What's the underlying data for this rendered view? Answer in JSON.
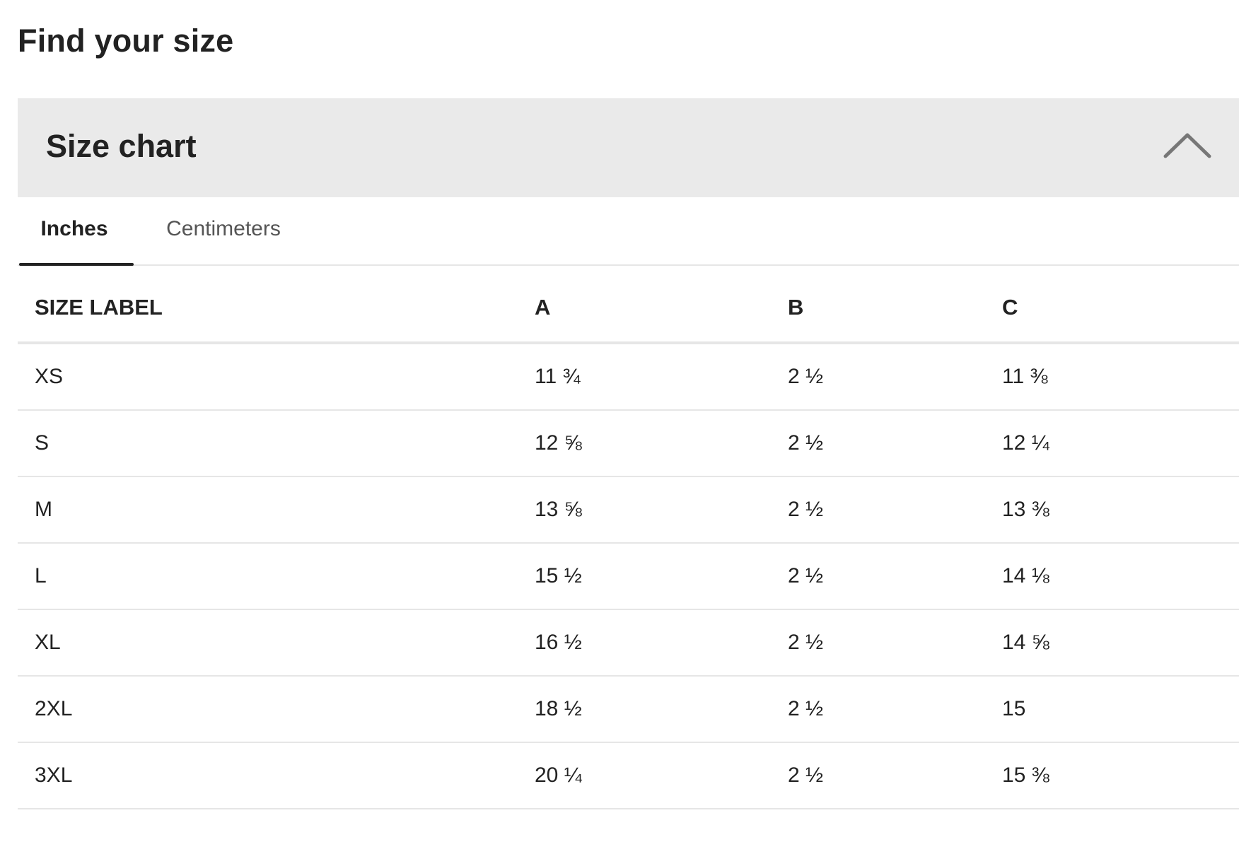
{
  "page": {
    "title": "Find your size"
  },
  "accordion": {
    "title": "Size chart",
    "icon": "chevron-up-icon"
  },
  "tabs": [
    {
      "label": "Inches",
      "active": true
    },
    {
      "label": "Centimeters",
      "active": false
    }
  ],
  "table": {
    "headers": [
      "SIZE LABEL",
      "A",
      "B",
      "C"
    ],
    "rows": [
      [
        "XS",
        "11 ¾",
        "2 ½",
        "11 ⅜"
      ],
      [
        "S",
        "12 ⅝",
        "2 ½",
        "12 ¼"
      ],
      [
        "M",
        "13 ⅝",
        "2 ½",
        "13 ⅜"
      ],
      [
        "L",
        "15 ½",
        "2 ½",
        "14 ⅛"
      ],
      [
        "XL",
        "16 ½",
        "2 ½",
        "14 ⅝"
      ],
      [
        "2XL",
        "18 ½",
        "2 ½",
        "15"
      ],
      [
        "3XL",
        "20 ¼",
        "2 ½",
        "15 ⅜"
      ]
    ]
  },
  "colors": {
    "text": "#222222",
    "muted_text": "#555555",
    "header_bg": "#eaeaea",
    "divider": "#e6e6e6",
    "chevron": "#777777"
  }
}
